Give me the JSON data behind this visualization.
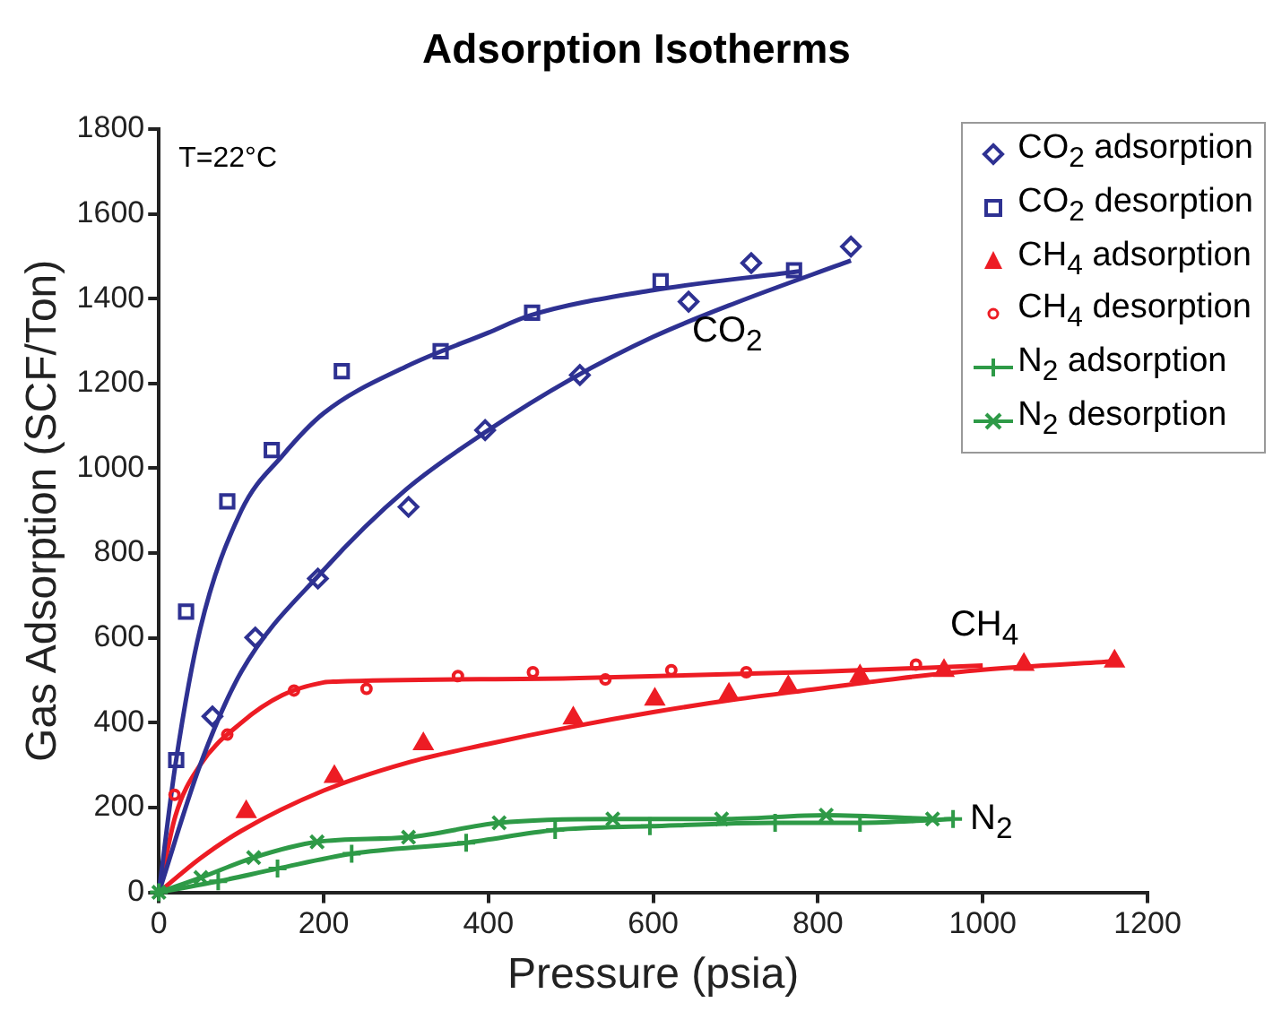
{
  "chart_data": {
    "type": "scatter",
    "title": "Adsorption Isotherms",
    "xlabel": "Pressure (psia)",
    "ylabel": "Gas Adsorption (SCF/Ton)",
    "xlim": [
      0,
      1200
    ],
    "xticks": [
      0,
      200,
      400,
      600,
      800,
      1000,
      1200
    ],
    "ylim": [
      0,
      1800
    ],
    "yticks": [
      0,
      200,
      400,
      600,
      800,
      1000,
      1200,
      1400,
      1600,
      1800
    ],
    "grid": false,
    "legend": "top right",
    "annotations": [
      "T=22°C",
      "CO$_{2}$",
      "CH$_{4}$",
      "N$_{2}$"
    ],
    "series": [
      {
        "name": "CO$_{2}$ adsorption",
        "color": "#2e3192",
        "marker": "diamond",
        "x": [
          65,
          117,
          193,
          303,
          396,
          511,
          643,
          719,
          840
        ],
        "values": [
          415,
          601,
          740,
          909,
          1090,
          1220,
          1393,
          1484,
          1523
        ]
      },
      {
        "name": "CO$_{2}$ desorption",
        "color": "#2e3192",
        "marker": "square",
        "x": [
          21,
          33,
          83,
          137,
          222,
          342,
          453,
          609,
          771
        ],
        "values": [
          312,
          662,
          922,
          1043,
          1229,
          1276,
          1367,
          1441,
          1467
        ]
      },
      {
        "name": "CH$_{4}$ adsorption",
        "color": "#ed1c24",
        "marker": "triangle",
        "x": [
          106,
          213,
          321,
          503,
          602,
          692,
          764,
          851,
          953,
          1050,
          1160
        ],
        "values": [
          190,
          273,
          350,
          411,
          455,
          467,
          485,
          510,
          523,
          537,
          545
        ]
      },
      {
        "name": "CH$_{4}$ desorption",
        "color": "#ed1c24",
        "marker": "circle",
        "x": [
          19,
          83,
          164,
          252,
          363,
          454,
          542,
          622,
          713,
          919
        ],
        "values": [
          230,
          372,
          476,
          480,
          510,
          519,
          502,
          524,
          519,
          537
        ]
      },
      {
        "name": "N$_{2}$ adsorption",
        "type": "line",
        "color": "#2e9a47",
        "marker": "cross",
        "x": [
          0,
          72,
          144,
          234,
          373,
          481,
          596,
          748,
          851,
          964
        ],
        "values": [
          0,
          26,
          56,
          91,
          117,
          147,
          156,
          164,
          164,
          173
        ]
      },
      {
        "name": "N$_{2}$ desorption",
        "type": "line",
        "color": "#2e9a47",
        "marker": "x",
        "x": [
          0,
          51,
          115,
          192,
          303,
          413,
          551,
          683,
          810,
          939
        ],
        "values": [
          0,
          35,
          82,
          119,
          130,
          164,
          173,
          173,
          182,
          173
        ]
      },
      {
        "type": "line",
        "color": "#2e3192",
        "marker": "none",
        "x": [
          0,
          50,
          100,
          200,
          300,
          400,
          500,
          600,
          700,
          840
        ],
        "values": [
          0,
          300,
          520,
          760,
          950,
          1090,
          1210,
          1310,
          1390,
          1490
        ]
      },
      {
        "type": "line",
        "color": "#2e3192",
        "marker": "none",
        "x": [
          0,
          20,
          50,
          100,
          150,
          200,
          300,
          400,
          450,
          600,
          780
        ],
        "values": [
          0,
          300,
          620,
          900,
          1030,
          1130,
          1240,
          1320,
          1360,
          1420,
          1465
        ]
      },
      {
        "type": "line",
        "color": "#ed1c24",
        "marker": "none",
        "x": [
          0,
          50,
          100,
          200,
          300,
          400,
          500,
          600,
          700,
          800,
          900,
          1000,
          1160
        ],
        "values": [
          0,
          80,
          145,
          240,
          305,
          350,
          390,
          425,
          455,
          480,
          505,
          525,
          545
        ]
      },
      {
        "type": "line",
        "color": "#ed1c24",
        "marker": "none",
        "x": [
          0,
          20,
          50,
          100,
          150,
          200,
          215,
          500,
          800,
          1000
        ],
        "values": [
          0,
          180,
          300,
          400,
          465,
          495,
          497,
          505,
          520,
          535
        ]
      }
    ]
  }
}
